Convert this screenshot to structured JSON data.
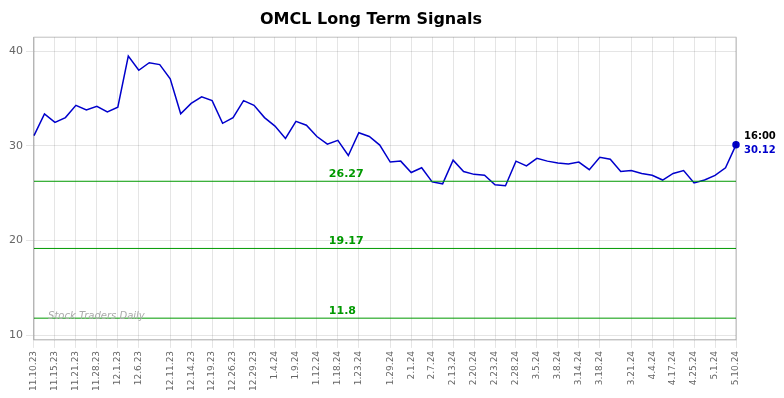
{
  "chart_data": {
    "type": "line",
    "title": "OMCL Long Term Signals",
    "categories": [
      "11.10.23",
      null,
      "11.15.23",
      null,
      "11.21.23",
      null,
      "11.28.23",
      null,
      "12.1.23",
      null,
      "12.6.23",
      null,
      null,
      "12.11.23",
      null,
      "12.14.23",
      null,
      "12.19.23",
      null,
      "12.26.23",
      null,
      "12.29.23",
      null,
      "1.4.24",
      null,
      "1.9.24",
      null,
      "1.12.24",
      null,
      "1.18.24",
      null,
      "1.23.24",
      null,
      null,
      "1.29.24",
      null,
      "2.1.24",
      null,
      "2.7.24",
      null,
      "2.13.24",
      null,
      "2.20.24",
      null,
      "2.23.24",
      null,
      "2.28.24",
      null,
      "3.5.24",
      null,
      "3.8.24",
      null,
      "3.14.24",
      null,
      "3.18.24",
      null,
      null,
      "3.21.24",
      null,
      "4.4.24",
      null,
      "4.17.24",
      null,
      "4.25.24",
      null,
      "5.1.24",
      null,
      "5.10.24"
    ],
    "values": [
      31.1,
      33.4,
      32.5,
      33.0,
      34.3,
      33.8,
      34.2,
      33.6,
      34.1,
      39.5,
      38.0,
      38.8,
      38.6,
      37.1,
      33.4,
      34.5,
      35.2,
      34.8,
      32.4,
      33.0,
      34.8,
      34.3,
      33.0,
      32.1,
      30.8,
      32.6,
      32.2,
      31.0,
      30.2,
      30.6,
      29.0,
      31.4,
      31.0,
      30.1,
      28.3,
      28.4,
      27.2,
      27.7,
      26.2,
      26.0,
      28.5,
      27.3,
      27.0,
      26.9,
      25.9,
      25.8,
      28.4,
      27.9,
      28.7,
      28.4,
      28.2,
      28.1,
      28.3,
      27.5,
      28.8,
      28.6,
      27.3,
      27.4,
      27.1,
      26.9,
      26.4,
      27.1,
      27.4,
      26.1,
      26.4,
      26.9,
      27.7,
      30.12
    ],
    "color": "#0000cc",
    "hlines": [
      {
        "value": 26.27,
        "label": "26.27",
        "color": "#009900"
      },
      {
        "value": 19.17,
        "label": "19.17",
        "color": "#009900"
      },
      {
        "value": 11.8,
        "label": "11.8",
        "color": "#009900"
      }
    ],
    "annotations": [
      {
        "text": "16:00",
        "color": "#000000"
      },
      {
        "text": "30.12",
        "color": "#0000cc"
      }
    ],
    "watermark": {
      "text": "Stock Traders Daily",
      "color": "#aaaaaa"
    },
    "ylim": [
      9.5,
      41.5
    ],
    "yticks": [
      10,
      20,
      30,
      40
    ],
    "grid": true
  }
}
